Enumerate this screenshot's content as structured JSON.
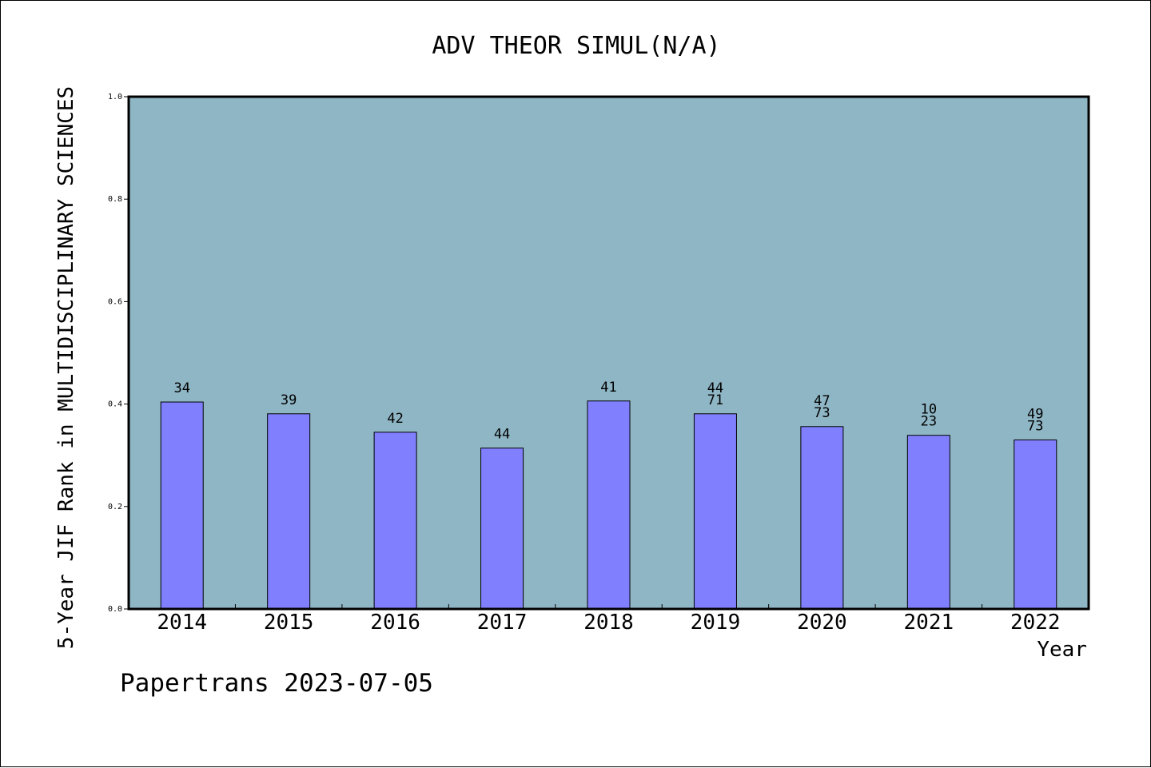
{
  "chart_data": {
    "type": "bar",
    "title": "ADV THEOR SIMUL(N/A)",
    "xlabel": "Year",
    "ylabel": "5-Year JIF Rank in MULTIDISCIPLINARY SCIENCES",
    "categories": [
      "2014",
      "2015",
      "2016",
      "2017",
      "2018",
      "2019",
      "2020",
      "2021",
      "2022"
    ],
    "values": [
      0.404,
      0.381,
      0.345,
      0.314,
      0.406,
      0.381,
      0.356,
      0.339,
      0.33
    ],
    "data_labels": [
      [
        "34"
      ],
      [
        "39"
      ],
      [
        "42"
      ],
      [
        "44"
      ],
      [
        "41"
      ],
      [
        "44",
        "71"
      ],
      [
        "47",
        "73"
      ],
      [
        "10",
        "23"
      ],
      [
        "49",
        "73"
      ]
    ],
    "ylim": [
      0,
      1.0
    ],
    "yticks": [
      "0.0",
      "0.2",
      "0.4",
      "0.6",
      "0.8",
      "1.0"
    ],
    "grid": false,
    "colors": {
      "plot_background": "#8fb6c5",
      "bar_fill": "#8080ff"
    }
  },
  "footer": "Papertrans 2023-07-05"
}
